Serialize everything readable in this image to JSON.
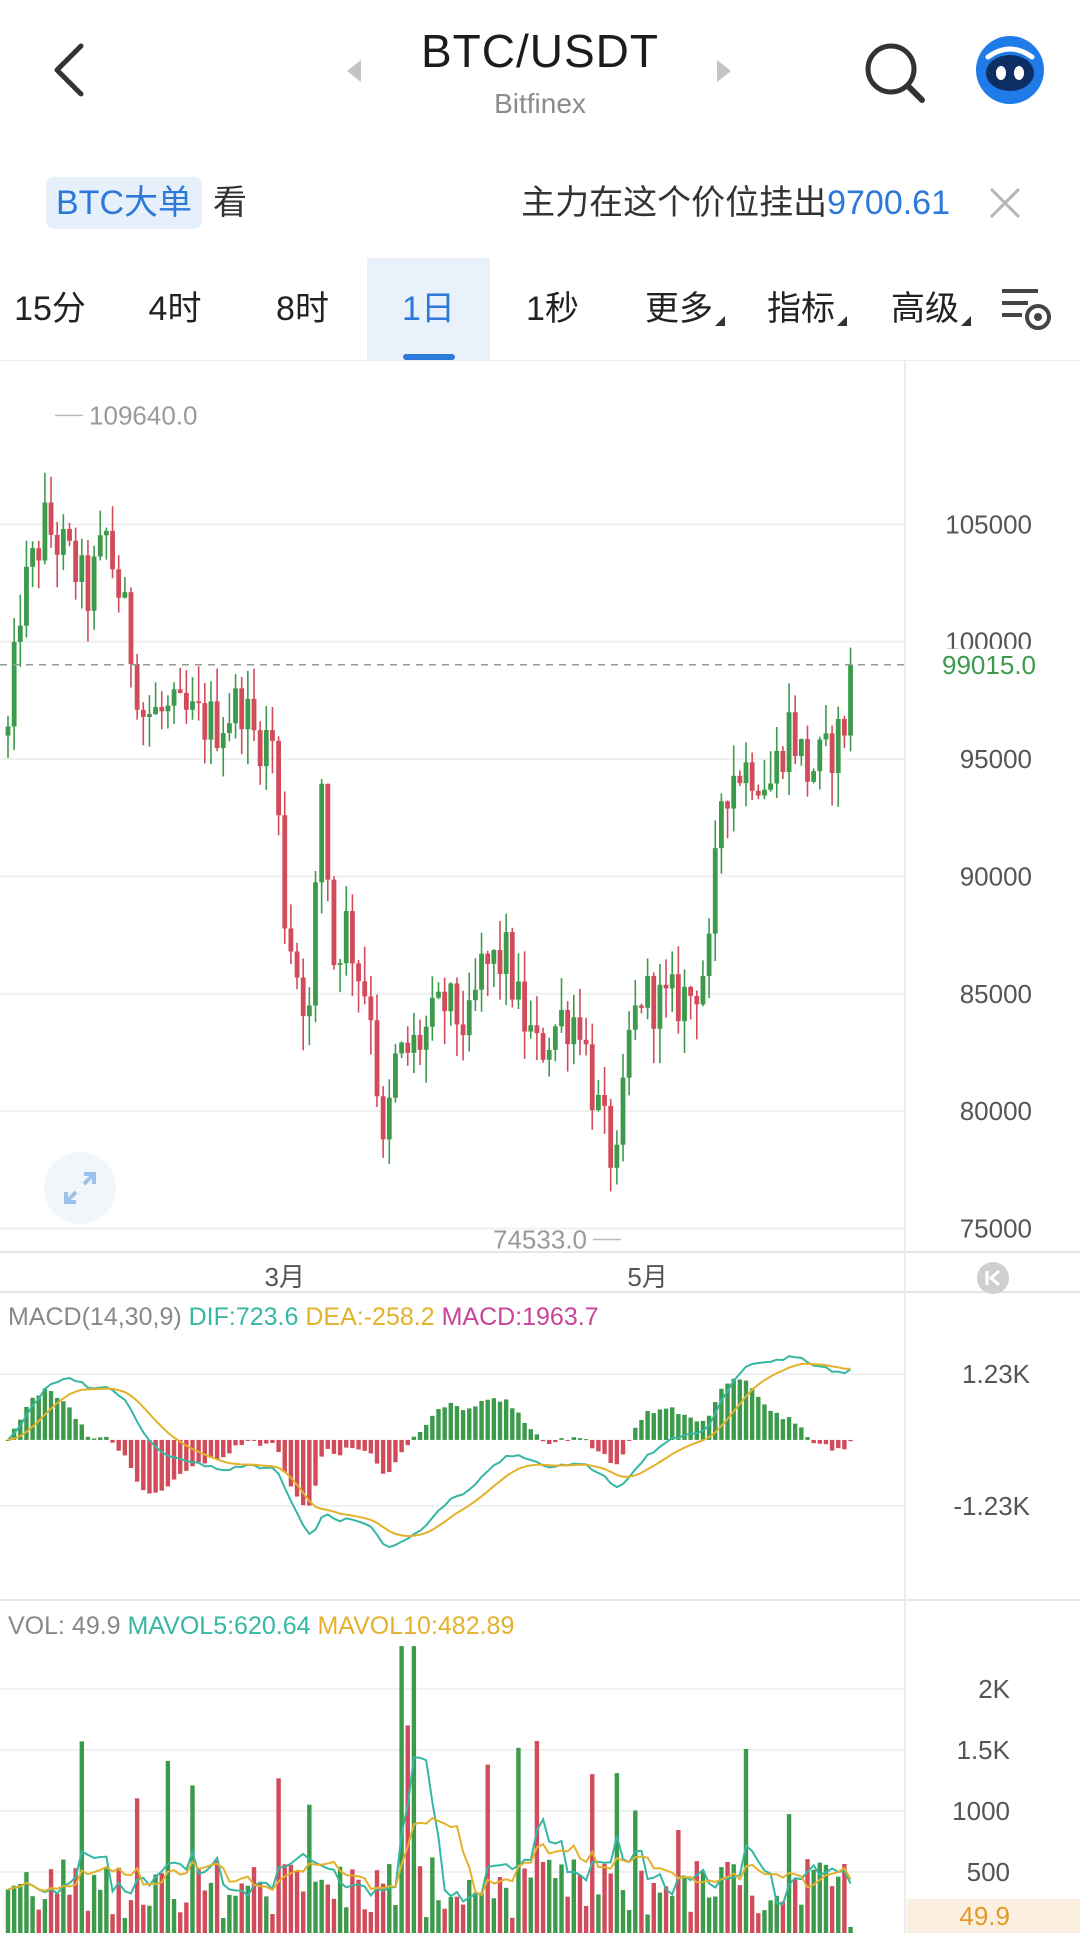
{
  "header": {
    "pair": "BTC/USDT",
    "exchange": "Bitfinex"
  },
  "notice": {
    "tag": "BTC大单",
    "look": "看",
    "message": "主力在这个价位挂出",
    "price": "9700.61"
  },
  "tabs": [
    {
      "label": "15分",
      "caret": false
    },
    {
      "label": "4时",
      "caret": false
    },
    {
      "label": "8时",
      "caret": false
    },
    {
      "label": "1日",
      "caret": false,
      "active": true
    },
    {
      "label": "1秒",
      "caret": false
    },
    {
      "label": "更多",
      "caret": true
    },
    {
      "label": "指标",
      "caret": true
    },
    {
      "label": "高级",
      "caret": true
    }
  ],
  "price_panel": {
    "high_label": "109640.0",
    "low_label": "74533.0",
    "last_price": "99015.0",
    "y_ticks": [
      "105000",
      "100000",
      "95000",
      "90000",
      "85000",
      "80000",
      "75000"
    ],
    "x_ticks": [
      "3月",
      "5月"
    ]
  },
  "macd_panel": {
    "name": "MACD(14,30,9)",
    "dif": "DIF:723.6",
    "dea": "DEA:-258.2",
    "macd": "MACD:1963.7",
    "y_ticks": [
      "1.23K",
      "-1.23K"
    ]
  },
  "vol_panel": {
    "vol": "VOL: 49.9",
    "mavol5": "MAVOL5:620.64",
    "mavol10": "MAVOL10:482.89",
    "y_ticks": [
      "2K",
      "1.5K",
      "1000",
      "500"
    ],
    "current": "49.9"
  },
  "colors": {
    "up": "#3c9a4b",
    "down": "#d24b5b",
    "accent": "#2d79d9",
    "dif": "#35b7a3",
    "dea": "#e3b12a",
    "macd": "#c6449a"
  },
  "chart_data": {
    "type": "candlestick",
    "ylim": [
      74000,
      112000
    ],
    "anchors": [
      [
        0,
        96000
      ],
      [
        2,
        101500
      ],
      [
        6,
        105000
      ],
      [
        10,
        103500
      ],
      [
        13,
        102000
      ],
      [
        16,
        104500
      ],
      [
        19,
        101000
      ],
      [
        22,
        97000
      ],
      [
        28,
        96800
      ],
      [
        34,
        96500
      ],
      [
        38,
        97500
      ],
      [
        40,
        96000
      ],
      [
        43,
        95800
      ],
      [
        45,
        88500
      ],
      [
        47,
        86000
      ],
      [
        49,
        84000
      ],
      [
        51,
        94000
      ],
      [
        53,
        86500
      ],
      [
        55,
        88000
      ],
      [
        57,
        86000
      ],
      [
        59,
        84500
      ],
      [
        61,
        78000
      ],
      [
        63,
        82000
      ],
      [
        67,
        83000
      ],
      [
        71,
        84500
      ],
      [
        75,
        83500
      ],
      [
        77,
        86000
      ],
      [
        81,
        86500
      ],
      [
        83,
        84500
      ],
      [
        86,
        82500
      ],
      [
        90,
        84000
      ],
      [
        93,
        84000
      ],
      [
        95,
        81000
      ],
      [
        97,
        79000
      ],
      [
        99,
        77500
      ],
      [
        101,
        83000
      ],
      [
        103,
        85000
      ],
      [
        107,
        84500
      ],
      [
        111,
        85000
      ],
      [
        114,
        86500
      ],
      [
        116,
        93500
      ],
      [
        118,
        94500
      ],
      [
        121,
        94700
      ],
      [
        124,
        94000
      ],
      [
        127,
        96500
      ],
      [
        130,
        94500
      ],
      [
        133,
        95000
      ],
      [
        136,
        96500
      ],
      [
        137,
        99015
      ]
    ],
    "vol_ylim": [
      0,
      2400
    ],
    "macd_ylim": [
      -2800,
      2200
    ]
  }
}
